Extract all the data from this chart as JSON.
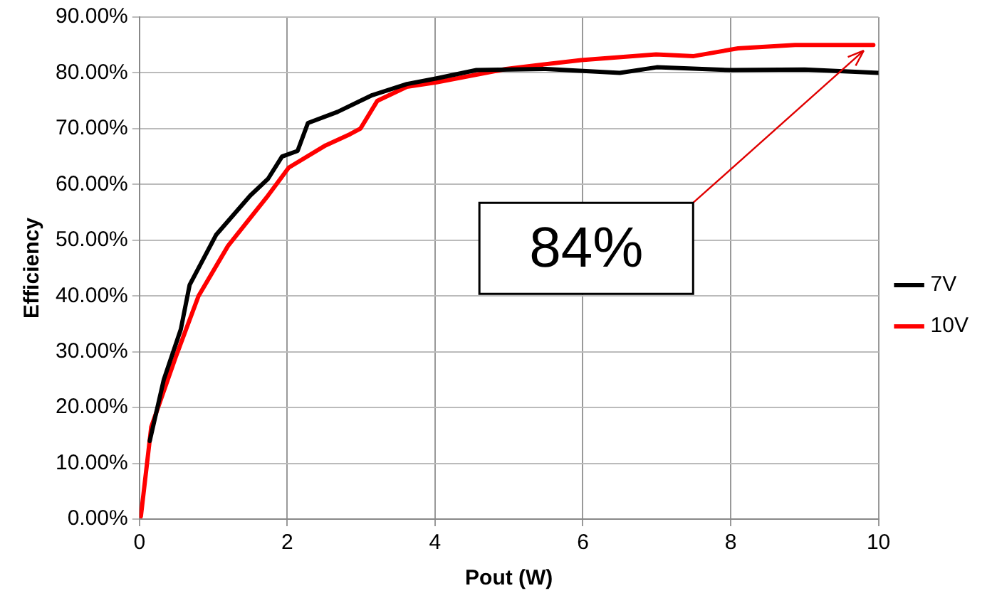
{
  "chart_data": {
    "type": "line",
    "xlabel": "Pout (W)",
    "ylabel": "Efficiency",
    "xlim": [
      0,
      10
    ],
    "xticks": [
      0,
      2,
      4,
      6,
      8,
      10
    ],
    "ylim": [
      0,
      90
    ],
    "yticks": [
      {
        "value": 0,
        "label": "0.00%"
      },
      {
        "value": 10,
        "label": "10.00%"
      },
      {
        "value": 20,
        "label": "20.00%"
      },
      {
        "value": 30,
        "label": "30.00%"
      },
      {
        "value": 40,
        "label": "40.00%"
      },
      {
        "value": 50,
        "label": "50.00%"
      },
      {
        "value": 60,
        "label": "60.00%"
      },
      {
        "value": 70,
        "label": "70.00%"
      },
      {
        "value": 80,
        "label": "80.00%"
      },
      {
        "value": 90,
        "label": "90.00%"
      }
    ],
    "grid": true,
    "legend": "right",
    "marker": "none",
    "line_style": "solid",
    "series": [
      {
        "name": "7V",
        "color": "#000000",
        "x": [
          0.14,
          0.33,
          0.56,
          0.68,
          1.04,
          1.5,
          1.74,
          1.93,
          2.14,
          2.28,
          2.68,
          3.15,
          3.62,
          4.02,
          4.56,
          5.5,
          6.5,
          7.0,
          8.0,
          9.0,
          10.0
        ],
        "values": [
          14,
          25,
          34,
          42,
          51,
          58,
          61,
          65,
          66,
          71,
          73,
          76,
          78,
          79,
          80.5,
          80.7,
          80,
          81,
          80.5,
          80.6,
          80
        ]
      },
      {
        "name": "10V",
        "color": "#ff0000",
        "x": [
          0.02,
          0.16,
          0.49,
          0.8,
          1.2,
          1.74,
          2.02,
          2.52,
          2.85,
          2.99,
          3.22,
          3.62,
          4.02,
          4.96,
          5.98,
          6.99,
          7.5,
          8.1,
          8.87,
          9.93
        ],
        "values": [
          0.5,
          16.5,
          29,
          40,
          49,
          58,
          63,
          67,
          69,
          70,
          75,
          77.5,
          78.3,
          80.7,
          82.3,
          83.3,
          83,
          84.4,
          85,
          85
        ]
      }
    ],
    "annotations": [
      {
        "text": "84%",
        "x": 9.8,
        "y": 85
      }
    ]
  }
}
